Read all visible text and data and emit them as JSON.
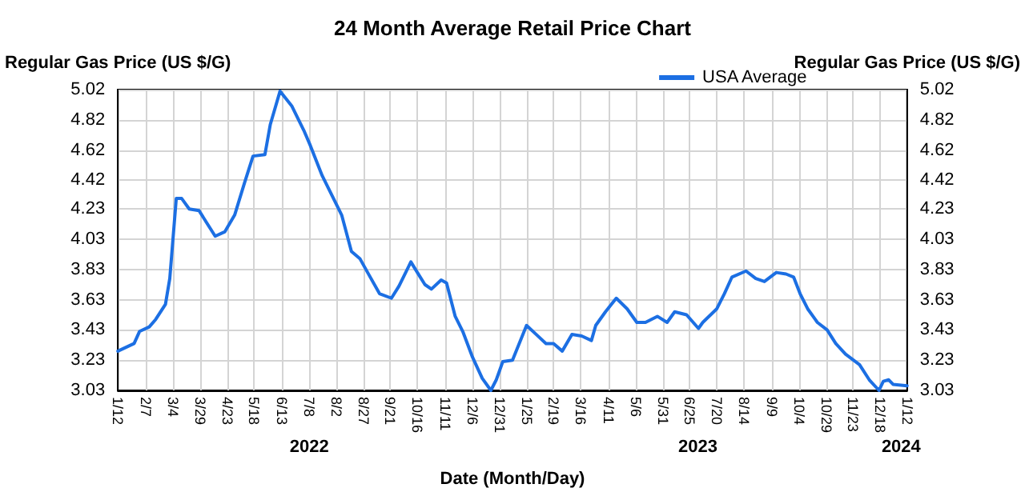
{
  "chart_data": {
    "type": "line",
    "title": "24 Month Average Retail Price Chart",
    "xlabel": "Date (Month/Day)",
    "ylabel": "Regular Gas Price (US $/G)",
    "y2label": "Regular Gas Price (US $/G)",
    "x": [
      "2022-01-12",
      "2022-01-27",
      "2022-02-01",
      "2022-02-10",
      "2022-02-16",
      "2022-02-25",
      "2022-03-01",
      "2022-03-07",
      "2022-03-12",
      "2022-03-19",
      "2022-03-28",
      "2022-04-12",
      "2022-04-21",
      "2022-04-30",
      "2022-05-09",
      "2022-05-17",
      "2022-05-28",
      "2022-06-02",
      "2022-06-11",
      "2022-06-22",
      "2022-07-03",
      "2022-07-09",
      "2022-07-20",
      "2022-08-07",
      "2022-08-16",
      "2022-08-24",
      "2022-08-31",
      "2022-09-11",
      "2022-09-22",
      "2022-09-29",
      "2022-10-10",
      "2022-10-16",
      "2022-10-23",
      "2022-10-29",
      "2022-11-07",
      "2022-11-12",
      "2022-11-20",
      "2022-11-27",
      "2022-12-06",
      "2022-12-15",
      "2022-12-23",
      "2022-12-28",
      "2023-01-03",
      "2023-01-12",
      "2023-01-25",
      "2023-02-03",
      "2023-02-12",
      "2023-02-19",
      "2023-02-27",
      "2023-03-08",
      "2023-03-17",
      "2023-03-26",
      "2023-03-30",
      "2023-04-08",
      "2023-04-18",
      "2023-04-28",
      "2023-05-07",
      "2023-05-15",
      "2023-05-26",
      "2023-06-04",
      "2023-06-11",
      "2023-06-22",
      "2023-07-03",
      "2023-07-07",
      "2023-07-20",
      "2023-07-27",
      "2023-08-03",
      "2023-08-16",
      "2023-08-25",
      "2023-09-02",
      "2023-09-13",
      "2023-09-22",
      "2023-09-29",
      "2023-10-05",
      "2023-10-12",
      "2023-10-21",
      "2023-10-30",
      "2023-11-07",
      "2023-11-16",
      "2023-11-29",
      "2023-12-08",
      "2023-12-17",
      "2023-12-21",
      "2023-12-26",
      "2023-12-30",
      "2024-01-12"
    ],
    "series": [
      {
        "name": "USA Average",
        "color": "#1c6fe3",
        "values": [
          3.29,
          3.34,
          3.42,
          3.45,
          3.5,
          3.6,
          3.77,
          4.3,
          4.3,
          4.23,
          4.22,
          4.05,
          4.08,
          4.19,
          4.4,
          4.58,
          4.59,
          4.79,
          5.01,
          4.91,
          4.75,
          4.65,
          4.45,
          4.19,
          3.95,
          3.9,
          3.81,
          3.67,
          3.64,
          3.72,
          3.88,
          3.81,
          3.73,
          3.7,
          3.76,
          3.74,
          3.52,
          3.42,
          3.25,
          3.11,
          3.03,
          3.1,
          3.22,
          3.23,
          3.46,
          3.4,
          3.34,
          3.34,
          3.29,
          3.4,
          3.39,
          3.36,
          3.46,
          3.55,
          3.64,
          3.57,
          3.48,
          3.48,
          3.52,
          3.48,
          3.55,
          3.53,
          3.44,
          3.48,
          3.57,
          3.67,
          3.78,
          3.82,
          3.77,
          3.75,
          3.81,
          3.8,
          3.78,
          3.67,
          3.57,
          3.48,
          3.43,
          3.34,
          3.27,
          3.2,
          3.1,
          3.03,
          3.09,
          3.1,
          3.07,
          3.06
        ]
      }
    ],
    "xlim": [
      "2022-01-12",
      "2024-01-12"
    ],
    "xticks": [
      {
        "value": "2022-01-12",
        "label": "1/12"
      },
      {
        "value": "2022-02-07",
        "label": "2/7"
      },
      {
        "value": "2022-03-04",
        "label": "3/4"
      },
      {
        "value": "2022-03-29",
        "label": "3/29"
      },
      {
        "value": "2022-04-23",
        "label": "4/23"
      },
      {
        "value": "2022-05-18",
        "label": "5/18"
      },
      {
        "value": "2022-06-13",
        "label": "6/13"
      },
      {
        "value": "2022-07-08",
        "label": "7/8"
      },
      {
        "value": "2022-08-02",
        "label": "8/2"
      },
      {
        "value": "2022-08-27",
        "label": "8/27"
      },
      {
        "value": "2022-09-21",
        "label": "9/21"
      },
      {
        "value": "2022-10-16",
        "label": "10/16"
      },
      {
        "value": "2022-11-11",
        "label": "11/11"
      },
      {
        "value": "2022-12-06",
        "label": "12/6"
      },
      {
        "value": "2022-12-31",
        "label": "12/31"
      },
      {
        "value": "2023-01-25",
        "label": "1/25"
      },
      {
        "value": "2023-02-19",
        "label": "2/19"
      },
      {
        "value": "2023-03-16",
        "label": "3/16"
      },
      {
        "value": "2023-04-11",
        "label": "4/11"
      },
      {
        "value": "2023-05-06",
        "label": "5/6"
      },
      {
        "value": "2023-05-31",
        "label": "5/31"
      },
      {
        "value": "2023-06-25",
        "label": "6/25"
      },
      {
        "value": "2023-07-20",
        "label": "7/20"
      },
      {
        "value": "2023-08-14",
        "label": "8/14"
      },
      {
        "value": "2023-09-09",
        "label": "9/9"
      },
      {
        "value": "2023-10-04",
        "label": "10/4"
      },
      {
        "value": "2023-10-29",
        "label": "10/29"
      },
      {
        "value": "2023-11-23",
        "label": "11/23"
      },
      {
        "value": "2023-12-18",
        "label": "12/18"
      },
      {
        "value": "2024-01-12",
        "label": "1/12"
      }
    ],
    "ylim": [
      3.03,
      5.02
    ],
    "yticks": [
      3.03,
      3.23,
      3.43,
      3.63,
      3.83,
      4.03,
      4.23,
      4.42,
      4.62,
      4.82,
      5.02
    ],
    "y2lim": [
      3.03,
      5.02
    ],
    "y2ticks": [
      3.03,
      3.23,
      3.43,
      3.63,
      3.83,
      4.03,
      4.23,
      4.42,
      4.62,
      4.82,
      5.02
    ],
    "annotations": [
      "2022",
      "2023",
      "2024"
    ],
    "grid": true,
    "legend": "top right",
    "marker": "none",
    "line_style": "solid"
  }
}
